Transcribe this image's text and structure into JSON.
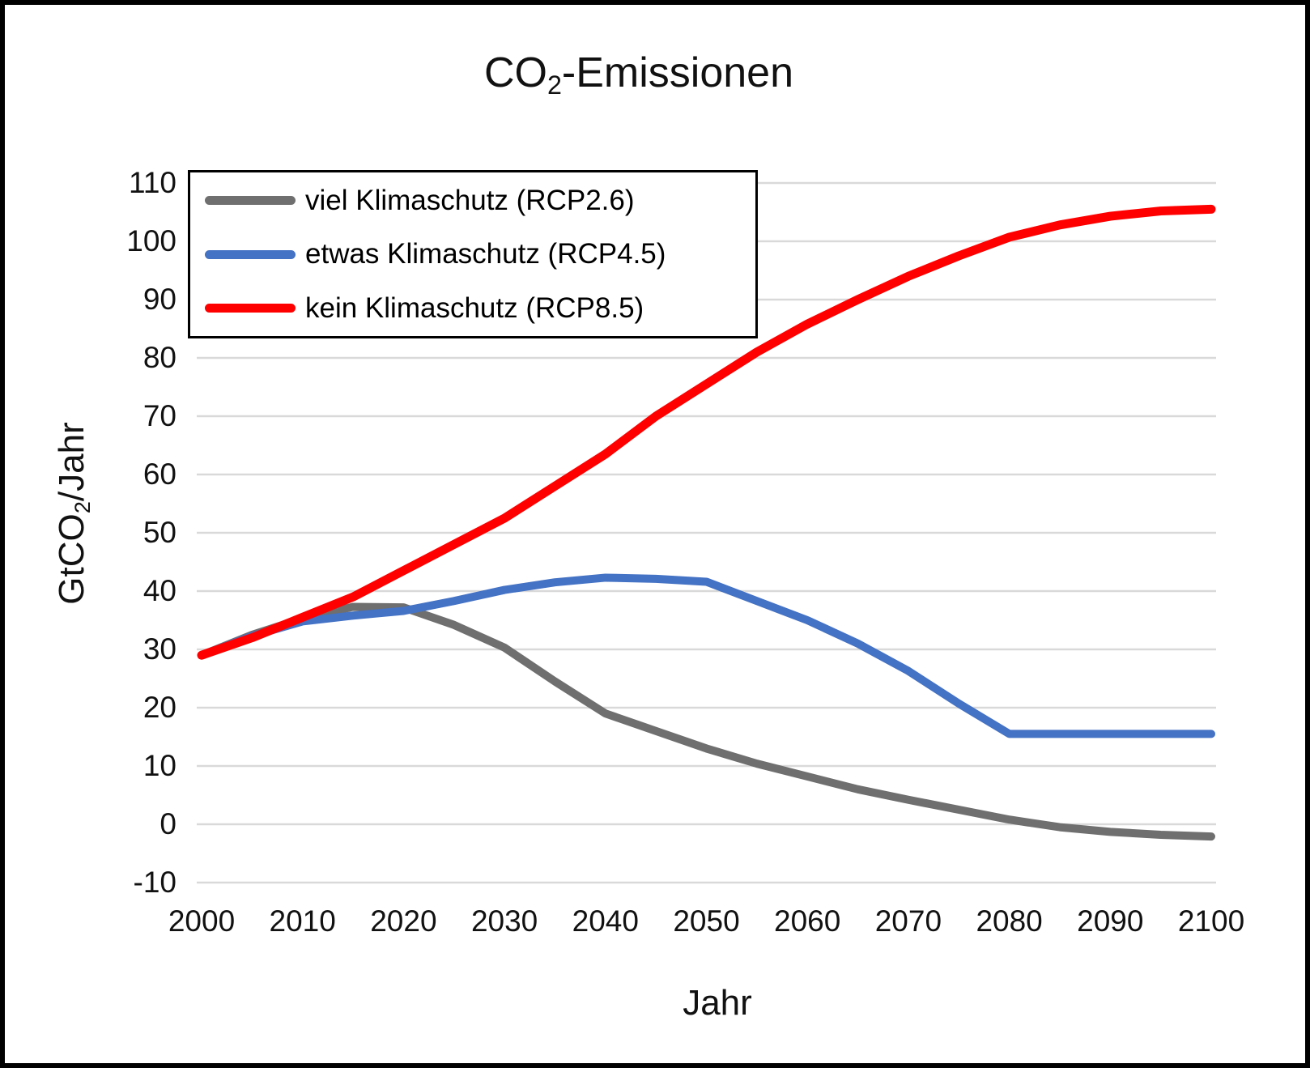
{
  "title": {
    "prefix": "CO",
    "sub": "2",
    "suffix": "-Emissionen"
  },
  "y_axis": {
    "label_prefix": "GtCO",
    "label_sub": "2",
    "label_suffix": "/Jahr"
  },
  "x_axis": {
    "label": "Jahr"
  },
  "legend": [
    {
      "label": "viel Klimaschutz (RCP2.6)",
      "color": "#6F6F6F"
    },
    {
      "label": "etwas Klimaschutz (RCP4.5)",
      "color": "#4472C4"
    },
    {
      "label": "kein Klimaschutz (RCP8.5)",
      "color": "#FF0000"
    }
  ],
  "chart_data": {
    "type": "line",
    "title": "CO2-Emissionen",
    "xlabel": "Jahr",
    "ylabel": "GtCO2/Jahr",
    "xlim": [
      2000,
      2100
    ],
    "ylim": [
      -10,
      110
    ],
    "y_ticks": [
      110,
      100,
      90,
      80,
      70,
      60,
      50,
      40,
      30,
      20,
      10,
      0,
      -10
    ],
    "x_ticks": [
      2000,
      2010,
      2020,
      2030,
      2040,
      2050,
      2060,
      2070,
      2080,
      2090,
      2100
    ],
    "grid": "horizontal",
    "grid_color": "#D9D9D9",
    "legend_position": "top-left inside",
    "x": [
      2000,
      2005,
      2010,
      2015,
      2020,
      2025,
      2030,
      2035,
      2040,
      2045,
      2050,
      2055,
      2060,
      2065,
      2070,
      2075,
      2080,
      2085,
      2090,
      2095,
      2100
    ],
    "series": [
      {
        "name": "viel Klimaschutz (RCP2.6)",
        "color": "#6F6F6F",
        "values": [
          29,
          32.5,
          35.3,
          37.3,
          37.2,
          34.2,
          30.3,
          24.5,
          19,
          16,
          13,
          10.4,
          8.2,
          6,
          4.2,
          2.5,
          0.8,
          -0.5,
          -1.3,
          -1.8,
          -2.1
        ]
      },
      {
        "name": "etwas Klimaschutz (RCP4.5)",
        "color": "#4472C4",
        "values": [
          29,
          32.3,
          34.8,
          35.8,
          36.6,
          38.3,
          40.2,
          41.5,
          42.3,
          42.1,
          41.6,
          38.3,
          35,
          31,
          26.3,
          20.7,
          15.5,
          15.5,
          15.5,
          15.5,
          15.5
        ]
      },
      {
        "name": "kein Klimaschutz (RCP8.5)",
        "color": "#FF0000",
        "values": [
          29,
          32,
          35.5,
          39,
          43.5,
          48,
          52.5,
          58,
          63.5,
          70,
          75.5,
          81,
          85.8,
          90,
          94,
          97.5,
          100.7,
          102.8,
          104.3,
          105.2,
          105.5
        ]
      }
    ]
  }
}
